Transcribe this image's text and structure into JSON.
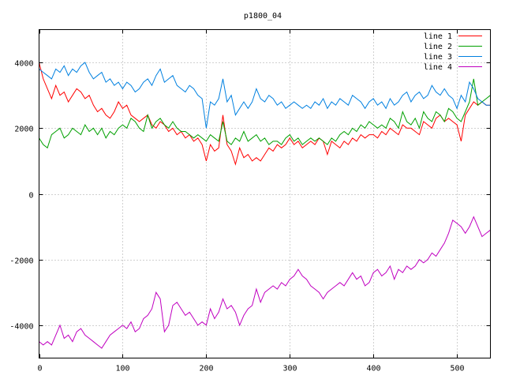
{
  "chart_data": {
    "type": "line",
    "title": "p1800_04",
    "xlabel": "",
    "ylabel": "",
    "xlim": [
      0,
      540
    ],
    "ylim": [
      -5000,
      5000
    ],
    "x_ticks": [
      0,
      100,
      200,
      300,
      400,
      500
    ],
    "y_ticks": [
      -4000,
      -2000,
      0,
      2000,
      4000
    ],
    "grid": true,
    "legend_position": "top-right",
    "series": [
      {
        "name": "line 1",
        "color": "#ff0000",
        "x": [
          0,
          5,
          10,
          15,
          20,
          25,
          30,
          35,
          40,
          45,
          50,
          55,
          60,
          65,
          70,
          75,
          80,
          85,
          90,
          95,
          100,
          105,
          110,
          115,
          120,
          125,
          130,
          135,
          140,
          145,
          150,
          155,
          160,
          165,
          170,
          175,
          180,
          185,
          190,
          195,
          200,
          205,
          210,
          215,
          220,
          225,
          230,
          235,
          240,
          245,
          250,
          255,
          260,
          265,
          270,
          275,
          280,
          285,
          290,
          295,
          300,
          305,
          310,
          315,
          320,
          325,
          330,
          335,
          340,
          345,
          350,
          355,
          360,
          365,
          370,
          375,
          380,
          385,
          390,
          395,
          400,
          405,
          410,
          415,
          420,
          425,
          430,
          435,
          440,
          445,
          450,
          455,
          460,
          465,
          470,
          475,
          480,
          485,
          490,
          495,
          500,
          505,
          510,
          515,
          520,
          525,
          530,
          535,
          540
        ],
        "y": [
          4000,
          3500,
          3200,
          2900,
          3300,
          3000,
          3100,
          2800,
          3000,
          3200,
          3100,
          2900,
          3000,
          2700,
          2500,
          2600,
          2400,
          2300,
          2500,
          2800,
          2600,
          2700,
          2400,
          2300,
          2200,
          2300,
          2400,
          2100,
          2000,
          2200,
          2100,
          1900,
          2000,
          1800,
          1900,
          1700,
          1800,
          1600,
          1700,
          1500,
          1000,
          1500,
          1300,
          1400,
          2400,
          1500,
          1300,
          900,
          1400,
          1100,
          1200,
          1000,
          1100,
          1000,
          1200,
          1400,
          1300,
          1500,
          1400,
          1500,
          1700,
          1500,
          1600,
          1400,
          1500,
          1600,
          1500,
          1700,
          1600,
          1200,
          1600,
          1500,
          1400,
          1600,
          1500,
          1700,
          1600,
          1800,
          1700,
          1800,
          1800,
          1700,
          1900,
          1800,
          2000,
          1900,
          1800,
          2100,
          2000,
          2000,
          1900,
          1800,
          2200,
          2100,
          2000,
          2300,
          2400,
          2200,
          2300,
          2200,
          2100,
          1600,
          2400,
          2600,
          2800,
          2700,
          2800,
          2700,
          2700
        ]
      },
      {
        "name": "line 2",
        "color": "#00a000",
        "x": [
          0,
          5,
          10,
          15,
          20,
          25,
          30,
          35,
          40,
          45,
          50,
          55,
          60,
          65,
          70,
          75,
          80,
          85,
          90,
          95,
          100,
          105,
          110,
          115,
          120,
          125,
          130,
          135,
          140,
          145,
          150,
          155,
          160,
          165,
          170,
          175,
          180,
          185,
          190,
          195,
          200,
          205,
          210,
          215,
          220,
          225,
          230,
          235,
          240,
          245,
          250,
          255,
          260,
          265,
          270,
          275,
          280,
          285,
          290,
          295,
          300,
          305,
          310,
          315,
          320,
          325,
          330,
          335,
          340,
          345,
          350,
          355,
          360,
          365,
          370,
          375,
          380,
          385,
          390,
          395,
          400,
          405,
          410,
          415,
          420,
          425,
          430,
          435,
          440,
          445,
          450,
          455,
          460,
          465,
          470,
          475,
          480,
          485,
          490,
          495,
          500,
          505,
          510,
          515,
          520,
          525,
          530,
          535,
          540
        ],
        "y": [
          1700,
          1500,
          1400,
          1800,
          1900,
          2000,
          1700,
          1800,
          2000,
          1900,
          1800,
          2100,
          1900,
          2000,
          1800,
          2000,
          1700,
          1900,
          1800,
          2000,
          2100,
          2000,
          2300,
          2200,
          2000,
          1900,
          2400,
          2000,
          2200,
          2300,
          2100,
          2000,
          2200,
          2000,
          1900,
          1900,
          1800,
          1700,
          1800,
          1700,
          1600,
          1800,
          1700,
          1600,
          2200,
          1600,
          1500,
          1700,
          1600,
          1900,
          1600,
          1700,
          1800,
          1600,
          1700,
          1500,
          1600,
          1600,
          1500,
          1700,
          1800,
          1600,
          1700,
          1500,
          1600,
          1700,
          1600,
          1700,
          1600,
          1500,
          1700,
          1600,
          1800,
          1900,
          1800,
          2000,
          1900,
          2100,
          2000,
          2200,
          2100,
          2000,
          2100,
          2000,
          2300,
          2200,
          2000,
          2500,
          2200,
          2100,
          2300,
          2000,
          2500,
          2300,
          2200,
          2500,
          2400,
          2200,
          2600,
          2500,
          2300,
          2200,
          2500,
          2800,
          3500,
          2700,
          2800,
          2900,
          3000
        ]
      },
      {
        "name": "line 3",
        "color": "#0080e0",
        "x": [
          0,
          5,
          10,
          15,
          20,
          25,
          30,
          35,
          40,
          45,
          50,
          55,
          60,
          65,
          70,
          75,
          80,
          85,
          90,
          95,
          100,
          105,
          110,
          115,
          120,
          125,
          130,
          135,
          140,
          145,
          150,
          155,
          160,
          165,
          170,
          175,
          180,
          185,
          190,
          195,
          200,
          205,
          210,
          215,
          220,
          225,
          230,
          235,
          240,
          245,
          250,
          255,
          260,
          265,
          270,
          275,
          280,
          285,
          290,
          295,
          300,
          305,
          310,
          315,
          320,
          325,
          330,
          335,
          340,
          345,
          350,
          355,
          360,
          365,
          370,
          375,
          380,
          385,
          390,
          395,
          400,
          405,
          410,
          415,
          420,
          425,
          430,
          435,
          440,
          445,
          450,
          455,
          460,
          465,
          470,
          475,
          480,
          485,
          490,
          495,
          500,
          505,
          510,
          515,
          520,
          525,
          530,
          535,
          540
        ],
        "y": [
          3800,
          3700,
          3600,
          3500,
          3800,
          3700,
          3900,
          3600,
          3800,
          3700,
          3900,
          4000,
          3700,
          3500,
          3600,
          3700,
          3400,
          3500,
          3300,
          3400,
          3200,
          3400,
          3300,
          3100,
          3200,
          3400,
          3500,
          3300,
          3600,
          3800,
          3400,
          3500,
          3600,
          3300,
          3200,
          3100,
          3300,
          3200,
          3000,
          2900,
          2000,
          2800,
          2700,
          2900,
          3500,
          2800,
          3000,
          2400,
          2600,
          2800,
          2600,
          2800,
          3200,
          2900,
          2800,
          3000,
          2900,
          2700,
          2800,
          2600,
          2700,
          2800,
          2700,
          2600,
          2700,
          2600,
          2800,
          2700,
          2900,
          2600,
          2800,
          2700,
          2900,
          2800,
          2700,
          3000,
          2900,
          2800,
          2600,
          2800,
          2900,
          2700,
          2800,
          2600,
          2900,
          2700,
          2800,
          3000,
          3100,
          2800,
          3000,
          3100,
          2900,
          3000,
          3300,
          3100,
          3000,
          3200,
          3000,
          2900,
          2600,
          3000,
          2800,
          3400,
          3200,
          2900,
          2800,
          2700,
          2700
        ]
      },
      {
        "name": "line 4",
        "color": "#c000c0",
        "x": [
          0,
          5,
          10,
          15,
          20,
          25,
          30,
          35,
          40,
          45,
          50,
          55,
          60,
          65,
          70,
          75,
          80,
          85,
          90,
          95,
          100,
          105,
          110,
          115,
          120,
          125,
          130,
          135,
          140,
          145,
          150,
          155,
          160,
          165,
          170,
          175,
          180,
          185,
          190,
          195,
          200,
          205,
          210,
          215,
          220,
          225,
          230,
          235,
          240,
          245,
          250,
          255,
          260,
          265,
          270,
          275,
          280,
          285,
          290,
          295,
          300,
          305,
          310,
          315,
          320,
          325,
          330,
          335,
          340,
          345,
          350,
          355,
          360,
          365,
          370,
          375,
          380,
          385,
          390,
          395,
          400,
          405,
          410,
          415,
          420,
          425,
          430,
          435,
          440,
          445,
          450,
          455,
          460,
          465,
          470,
          475,
          480,
          485,
          490,
          495,
          500,
          505,
          510,
          515,
          520,
          525,
          530,
          535,
          540
        ],
        "y": [
          -4500,
          -4600,
          -4500,
          -4600,
          -4300,
          -4000,
          -4400,
          -4300,
          -4500,
          -4200,
          -4100,
          -4300,
          -4400,
          -4500,
          -4600,
          -4700,
          -4500,
          -4300,
          -4200,
          -4100,
          -4000,
          -4100,
          -3900,
          -4200,
          -4100,
          -3800,
          -3700,
          -3500,
          -3000,
          -3200,
          -4200,
          -4000,
          -3400,
          -3300,
          -3500,
          -3700,
          -3600,
          -3800,
          -4000,
          -3900,
          -4000,
          -3500,
          -3800,
          -3600,
          -3200,
          -3500,
          -3400,
          -3600,
          -4000,
          -3700,
          -3500,
          -3400,
          -2900,
          -3300,
          -3000,
          -2900,
          -2800,
          -2900,
          -2700,
          -2800,
          -2600,
          -2500,
          -2300,
          -2500,
          -2600,
          -2800,
          -2900,
          -3000,
          -3200,
          -3000,
          -2900,
          -2800,
          -2700,
          -2800,
          -2600,
          -2400,
          -2600,
          -2500,
          -2800,
          -2700,
          -2400,
          -2300,
          -2500,
          -2400,
          -2200,
          -2600,
          -2300,
          -2400,
          -2200,
          -2300,
          -2200,
          -2000,
          -2100,
          -2000,
          -1800,
          -1900,
          -1700,
          -1500,
          -1200,
          -800,
          -900,
          -1000,
          -1200,
          -1000,
          -700,
          -1000,
          -1300,
          -1200,
          -1100
        ]
      }
    ]
  }
}
